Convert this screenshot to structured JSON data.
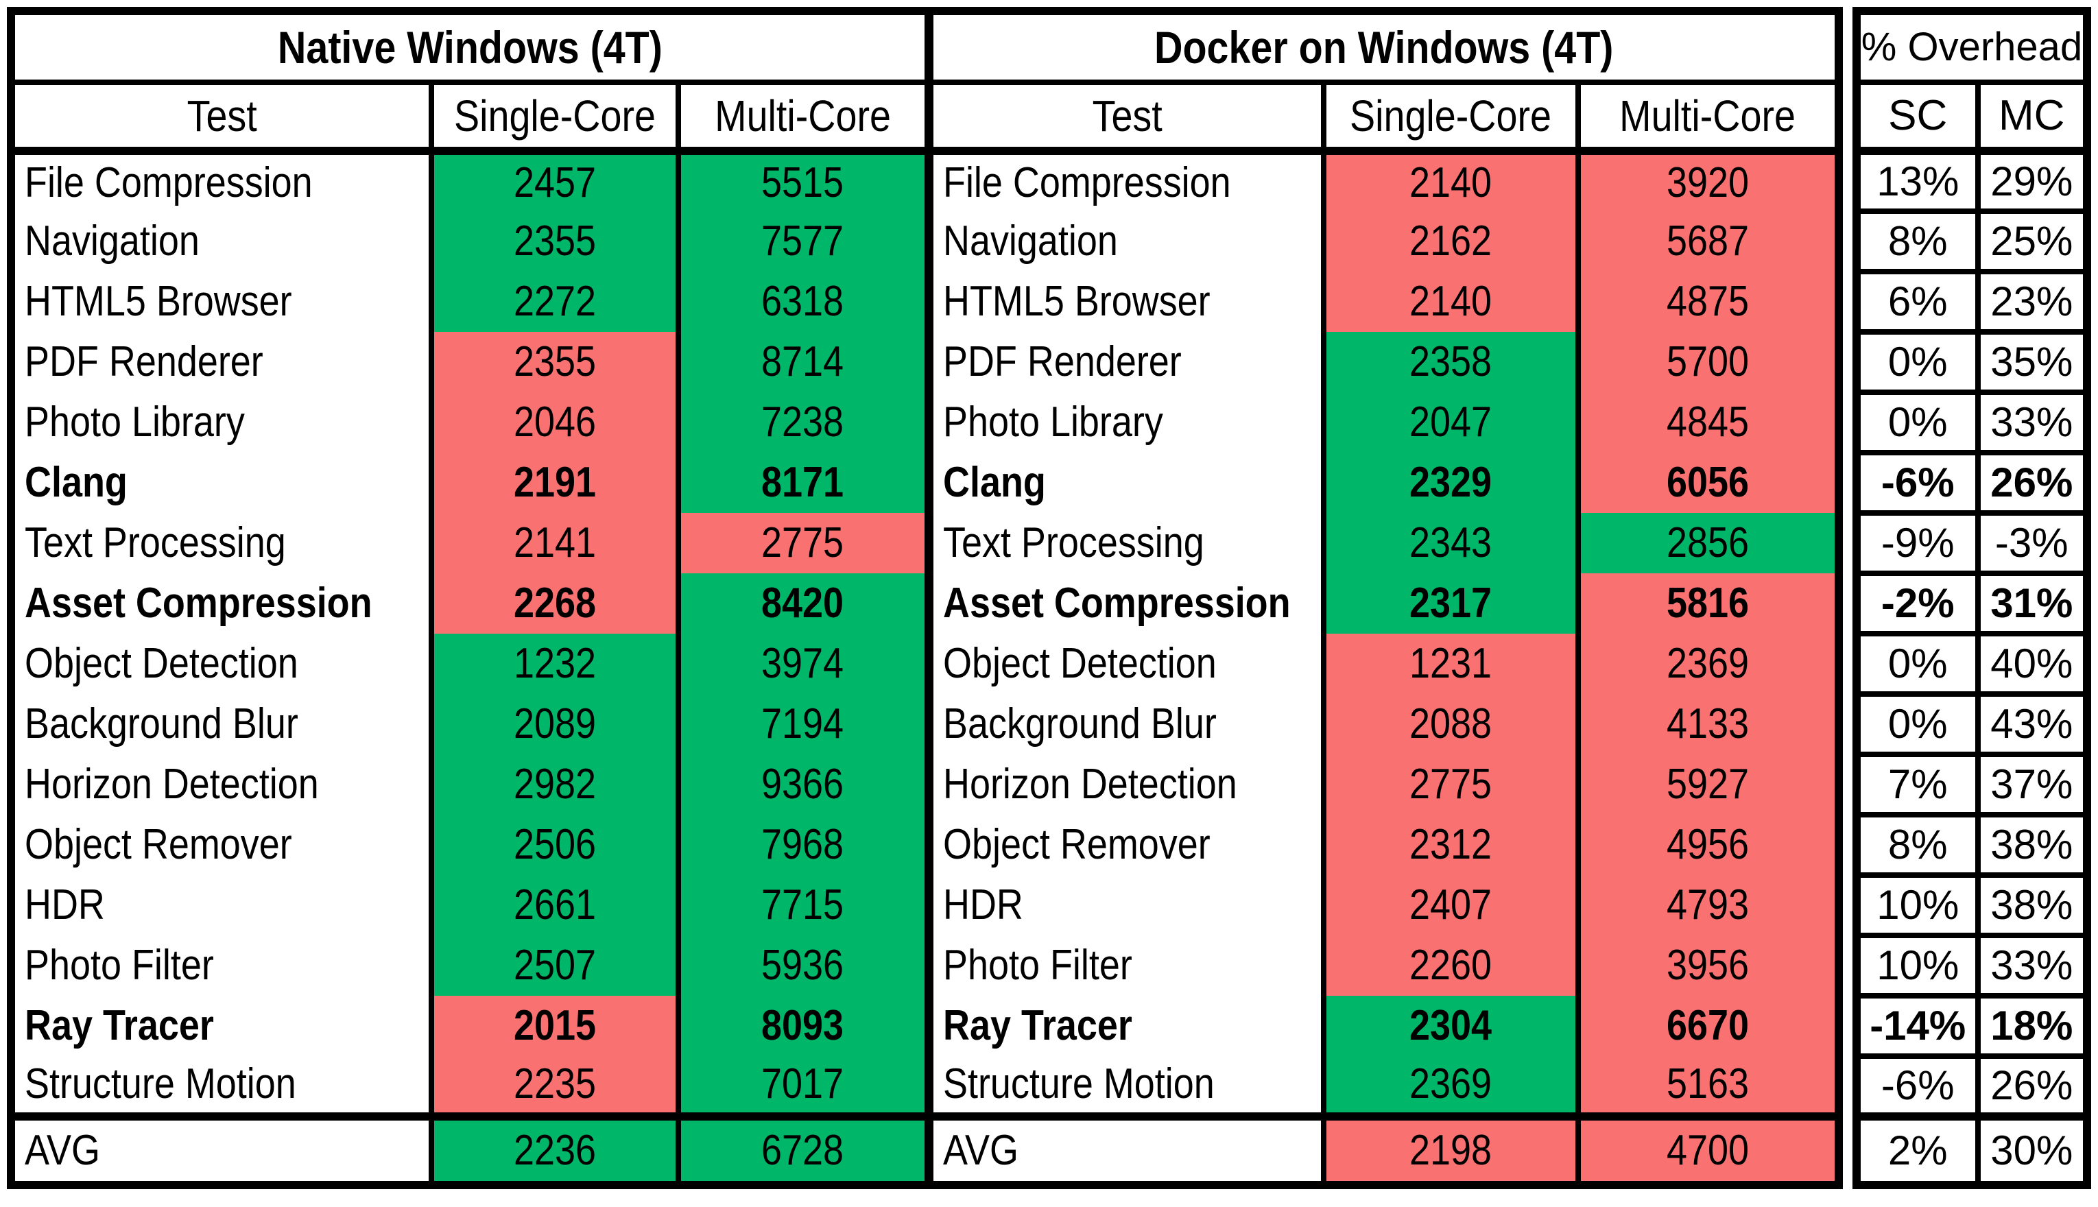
{
  "colors": {
    "green": "#00B669",
    "red": "#FA7171",
    "border": "#000000",
    "background": "#FFFFFF"
  },
  "sections": {
    "native": {
      "header": "Native Windows (4T)"
    },
    "docker": {
      "header": "Docker on Windows (4T)"
    },
    "overhead": {
      "header": "% Overhead"
    }
  },
  "column_headers": {
    "test": "Test",
    "single_core": "Single-Core",
    "multi_core": "Multi-Core",
    "overhead_sc": "SC",
    "overhead_mc": "MC"
  },
  "rows": [
    {
      "test": "File Compression",
      "bold": false,
      "native": {
        "sc": "2457",
        "mc": "5515",
        "sc_color": "green",
        "mc_color": "green"
      },
      "docker": {
        "sc": "2140",
        "mc": "3920",
        "sc_color": "red",
        "mc_color": "red"
      },
      "overhead": {
        "sc": "13%",
        "mc": "29%"
      }
    },
    {
      "test": "Navigation",
      "bold": false,
      "native": {
        "sc": "2355",
        "mc": "7577",
        "sc_color": "green",
        "mc_color": "green"
      },
      "docker": {
        "sc": "2162",
        "mc": "5687",
        "sc_color": "red",
        "mc_color": "red"
      },
      "overhead": {
        "sc": "8%",
        "mc": "25%"
      }
    },
    {
      "test": "HTML5 Browser",
      "bold": false,
      "native": {
        "sc": "2272",
        "mc": "6318",
        "sc_color": "green",
        "mc_color": "green"
      },
      "docker": {
        "sc": "2140",
        "mc": "4875",
        "sc_color": "red",
        "mc_color": "red"
      },
      "overhead": {
        "sc": "6%",
        "mc": "23%"
      }
    },
    {
      "test": "PDF Renderer",
      "bold": false,
      "native": {
        "sc": "2355",
        "mc": "8714",
        "sc_color": "red",
        "mc_color": "green"
      },
      "docker": {
        "sc": "2358",
        "mc": "5700",
        "sc_color": "green",
        "mc_color": "red"
      },
      "overhead": {
        "sc": "0%",
        "mc": "35%"
      }
    },
    {
      "test": "Photo Library",
      "bold": false,
      "native": {
        "sc": "2046",
        "mc": "7238",
        "sc_color": "red",
        "mc_color": "green"
      },
      "docker": {
        "sc": "2047",
        "mc": "4845",
        "sc_color": "green",
        "mc_color": "red"
      },
      "overhead": {
        "sc": "0%",
        "mc": "33%"
      }
    },
    {
      "test": "Clang",
      "bold": true,
      "native": {
        "sc": "2191",
        "mc": "8171",
        "sc_color": "red",
        "mc_color": "green"
      },
      "docker": {
        "sc": "2329",
        "mc": "6056",
        "sc_color": "green",
        "mc_color": "red"
      },
      "overhead": {
        "sc": "-6%",
        "mc": "26%"
      }
    },
    {
      "test": "Text Processing",
      "bold": false,
      "native": {
        "sc": "2141",
        "mc": "2775",
        "sc_color": "red",
        "mc_color": "red"
      },
      "docker": {
        "sc": "2343",
        "mc": "2856",
        "sc_color": "green",
        "mc_color": "green"
      },
      "overhead": {
        "sc": "-9%",
        "mc": "-3%"
      }
    },
    {
      "test": "Asset Compression",
      "bold": true,
      "native": {
        "sc": "2268",
        "mc": "8420",
        "sc_color": "red",
        "mc_color": "green"
      },
      "docker": {
        "sc": "2317",
        "mc": "5816",
        "sc_color": "green",
        "mc_color": "red"
      },
      "overhead": {
        "sc": "-2%",
        "mc": "31%"
      }
    },
    {
      "test": "Object Detection",
      "bold": false,
      "native": {
        "sc": "1232",
        "mc": "3974",
        "sc_color": "green",
        "mc_color": "green"
      },
      "docker": {
        "sc": "1231",
        "mc": "2369",
        "sc_color": "red",
        "mc_color": "red"
      },
      "overhead": {
        "sc": "0%",
        "mc": "40%"
      }
    },
    {
      "test": "Background Blur",
      "bold": false,
      "native": {
        "sc": "2089",
        "mc": "7194",
        "sc_color": "green",
        "mc_color": "green"
      },
      "docker": {
        "sc": "2088",
        "mc": "4133",
        "sc_color": "red",
        "mc_color": "red"
      },
      "overhead": {
        "sc": "0%",
        "mc": "43%"
      }
    },
    {
      "test": "Horizon Detection",
      "bold": false,
      "native": {
        "sc": "2982",
        "mc": "9366",
        "sc_color": "green",
        "mc_color": "green"
      },
      "docker": {
        "sc": "2775",
        "mc": "5927",
        "sc_color": "red",
        "mc_color": "red"
      },
      "overhead": {
        "sc": "7%",
        "mc": "37%"
      }
    },
    {
      "test": "Object Remover",
      "bold": false,
      "native": {
        "sc": "2506",
        "mc": "7968",
        "sc_color": "green",
        "mc_color": "green"
      },
      "docker": {
        "sc": "2312",
        "mc": "4956",
        "sc_color": "red",
        "mc_color": "red"
      },
      "overhead": {
        "sc": "8%",
        "mc": "38%"
      }
    },
    {
      "test": "HDR",
      "bold": false,
      "native": {
        "sc": "2661",
        "mc": "7715",
        "sc_color": "green",
        "mc_color": "green"
      },
      "docker": {
        "sc": "2407",
        "mc": "4793",
        "sc_color": "red",
        "mc_color": "red"
      },
      "overhead": {
        "sc": "10%",
        "mc": "38%"
      }
    },
    {
      "test": "Photo Filter",
      "bold": false,
      "native": {
        "sc": "2507",
        "mc": "5936",
        "sc_color": "green",
        "mc_color": "green"
      },
      "docker": {
        "sc": "2260",
        "mc": "3956",
        "sc_color": "red",
        "mc_color": "red"
      },
      "overhead": {
        "sc": "10%",
        "mc": "33%"
      }
    },
    {
      "test": "Ray Tracer",
      "bold": true,
      "native": {
        "sc": "2015",
        "mc": "8093",
        "sc_color": "red",
        "mc_color": "green"
      },
      "docker": {
        "sc": "2304",
        "mc": "6670",
        "sc_color": "green",
        "mc_color": "red"
      },
      "overhead": {
        "sc": "-14%",
        "mc": "18%"
      }
    },
    {
      "test": "Structure Motion",
      "bold": false,
      "native": {
        "sc": "2235",
        "mc": "7017",
        "sc_color": "red",
        "mc_color": "green"
      },
      "docker": {
        "sc": "2369",
        "mc": "5163",
        "sc_color": "green",
        "mc_color": "red"
      },
      "overhead": {
        "sc": "-6%",
        "mc": "26%"
      }
    }
  ],
  "avg_row": {
    "test": "AVG",
    "bold": false,
    "native": {
      "sc": "2236",
      "mc": "6728",
      "sc_color": "green",
      "mc_color": "green"
    },
    "docker": {
      "sc": "2198",
      "mc": "4700",
      "sc_color": "red",
      "mc_color": "red"
    },
    "overhead": {
      "sc": "2%",
      "mc": "30%"
    }
  },
  "chart_data": {
    "type": "table",
    "title": "Native Windows (4T) vs Docker on Windows (4T) benchmark scores with % Overhead",
    "categories": [
      "File Compression",
      "Navigation",
      "HTML5 Browser",
      "PDF Renderer",
      "Photo Library",
      "Clang",
      "Text Processing",
      "Asset Compression",
      "Object Detection",
      "Background Blur",
      "Horizon Detection",
      "Object Remover",
      "HDR",
      "Photo Filter",
      "Ray Tracer",
      "Structure Motion"
    ],
    "series": [
      {
        "name": "Native Windows (4T) Single-Core",
        "values": [
          2457,
          2355,
          2272,
          2355,
          2046,
          2191,
          2141,
          2268,
          1232,
          2089,
          2982,
          2506,
          2661,
          2507,
          2015,
          2235
        ],
        "avg": 2236
      },
      {
        "name": "Native Windows (4T) Multi-Core",
        "values": [
          5515,
          7577,
          6318,
          8714,
          7238,
          8171,
          2775,
          8420,
          3974,
          7194,
          9366,
          7968,
          7715,
          5936,
          8093,
          7017
        ],
        "avg": 6728
      },
      {
        "name": "Docker on Windows (4T) Single-Core",
        "values": [
          2140,
          2162,
          2140,
          2358,
          2047,
          2329,
          2343,
          2317,
          1231,
          2088,
          2775,
          2312,
          2407,
          2260,
          2304,
          2369
        ],
        "avg": 2198
      },
      {
        "name": "Docker on Windows (4T) Multi-Core",
        "values": [
          3920,
          5687,
          4875,
          5700,
          4845,
          6056,
          2856,
          5816,
          2369,
          4133,
          5927,
          4956,
          4793,
          3956,
          6670,
          5163
        ],
        "avg": 4700
      },
      {
        "name": "% Overhead SC",
        "values": [
          13,
          8,
          6,
          0,
          0,
          -6,
          -9,
          -2,
          0,
          0,
          7,
          8,
          10,
          10,
          -14,
          -6
        ],
        "avg": 2
      },
      {
        "name": "% Overhead MC",
        "values": [
          29,
          25,
          23,
          35,
          33,
          26,
          -3,
          31,
          40,
          43,
          37,
          38,
          38,
          33,
          18,
          26
        ],
        "avg": 30
      }
    ],
    "bold_rows": [
      "Clang",
      "Asset Compression",
      "Ray Tracer"
    ],
    "cell_color_rule": "green = higher (winning) score between Native and Docker, red = lower score",
    "legend_position": "none",
    "grid": "partial (column separators only in score area; full grid in overhead area)"
  }
}
